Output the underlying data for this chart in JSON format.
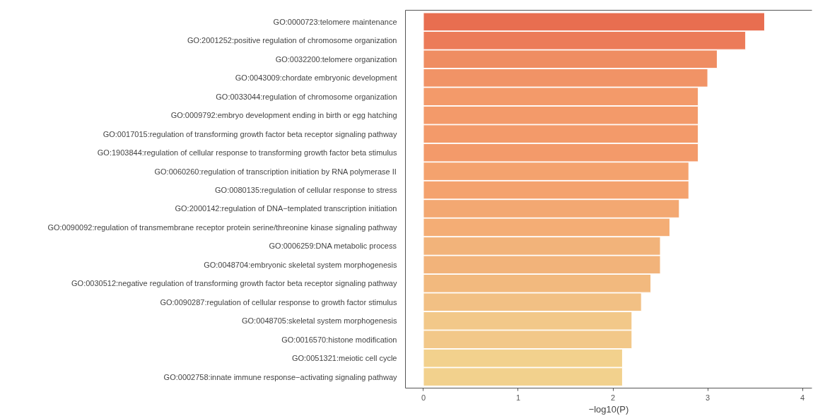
{
  "chart_data": {
    "type": "bar",
    "orientation": "horizontal",
    "xlabel": "−log10(P)",
    "categories": [
      "GO:0000723:telomere maintenance",
      "GO:2001252:positive regulation of chromosome organization",
      "GO:0032200:telomere organization",
      "GO:0043009:chordate embryonic development",
      "GO:0033044:regulation of chromosome organization",
      "GO:0009792:embryo development ending in birth or egg hatching",
      "GO:0017015:regulation of transforming growth factor beta receptor signaling pathway",
      "GO:1903844:regulation of cellular response to transforming growth factor beta stimulus",
      "GO:0060260:regulation of transcription initiation by RNA polymerase II",
      "GO:0080135:regulation of cellular response to stress",
      "GO:2000142:regulation of DNA−templated transcription initiation",
      "GO:0090092:regulation of transmembrane receptor protein serine/threonine kinase signaling pathway",
      "GO:0006259:DNA metabolic process",
      "GO:0048704:embryonic skeletal system morphogenesis",
      "GO:0030512:negative regulation of transforming growth factor beta receptor signaling pathway",
      "GO:0090287:regulation of cellular response to growth factor stimulus",
      "GO:0048705:skeletal system morphogenesis",
      "GO:0016570:histone modification",
      "GO:0051321:meiotic cell cycle",
      "GO:0002758:innate immune response−activating signaling pathway"
    ],
    "values": [
      3.6,
      3.4,
      3.1,
      3.0,
      2.9,
      2.9,
      2.9,
      2.9,
      2.8,
      2.8,
      2.7,
      2.6,
      2.5,
      2.5,
      2.4,
      2.3,
      2.2,
      2.2,
      2.1,
      2.1
    ],
    "colors": [
      "#e86e50",
      "#ec7b59",
      "#ef8d62",
      "#f19366",
      "#f39a6a",
      "#f39a6a",
      "#f39a6a",
      "#f39a6a",
      "#f4a26e",
      "#f4a26e",
      "#f3a872",
      "#f4ad75",
      "#f2b37a",
      "#f2b37a",
      "#f2b97e",
      "#f2c084",
      "#f2c889",
      "#f2c889",
      "#f2d18d",
      "#f2d18d"
    ],
    "xlim": [
      -0.19,
      4.1
    ],
    "xticks": [
      0,
      1,
      2,
      3,
      4
    ],
    "grid": false
  }
}
